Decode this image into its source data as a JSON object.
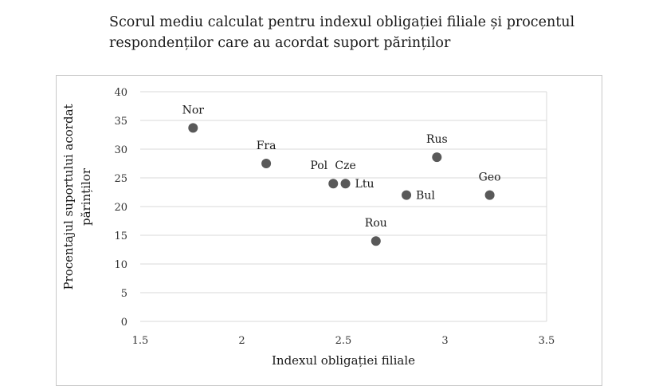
{
  "chart_data": {
    "type": "scatter",
    "title_lines": [
      "Scorul mediu calculat pentru indexul obligației filiale și procentul",
      "respondenților care au acordat suport părinților"
    ],
    "xlabel": "Indexul obligației filiale",
    "ylabel_lines": [
      "Procentajul suportului acordat",
      "părinților"
    ],
    "xlim": [
      1.5,
      3.5
    ],
    "ylim": [
      0,
      40
    ],
    "x_ticks": [
      "1.5",
      "2",
      "2.5",
      "3",
      "3.5"
    ],
    "y_ticks": [
      "0",
      "5",
      "10",
      "15",
      "20",
      "25",
      "30",
      "35",
      "40"
    ],
    "grid": "horizontal",
    "marker_color": "#595959",
    "points": [
      {
        "label": "Nor",
        "x": 1.76,
        "y": 33.7,
        "label_pos": "above"
      },
      {
        "label": "Fra",
        "x": 2.12,
        "y": 27.5,
        "label_pos": "above"
      },
      {
        "label": "Pol",
        "x": 2.45,
        "y": 24.0,
        "label_pos": "above-left"
      },
      {
        "label": "Cze",
        "x": 2.51,
        "y": 24.0,
        "label_pos": "above"
      },
      {
        "label": "Ltu",
        "x": 2.51,
        "y": 24.0,
        "label_pos": "right"
      },
      {
        "label": "Rou",
        "x": 2.66,
        "y": 14.0,
        "label_pos": "above"
      },
      {
        "label": "Bul",
        "x": 2.81,
        "y": 22.0,
        "label_pos": "right"
      },
      {
        "label": "Rus",
        "x": 2.96,
        "y": 28.6,
        "label_pos": "above"
      },
      {
        "label": "Geo",
        "x": 3.22,
        "y": 22.0,
        "label_pos": "above"
      }
    ]
  }
}
